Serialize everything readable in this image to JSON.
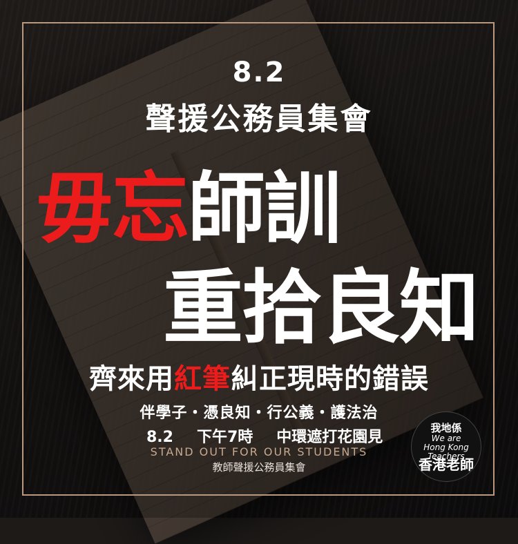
{
  "poster": {
    "date_top": "8.2",
    "subtitle": "聲援公務員集會",
    "headline1_red": "毋忘",
    "headline1_white": "師訓",
    "headline2": "重拾良知",
    "line3_pre": "齊來用",
    "line3_red": "紅筆",
    "line3_post": "糾正現時的錯誤",
    "line4": "伴學子・憑良知・行公義・護法治",
    "line5_date": "8.2",
    "line5_time": "下午7時",
    "line5_place": "中環遮打花園見",
    "stand_out": "STAND OUT FOR OUR STUDENTS",
    "organizer": "教師聲援公務員集會"
  },
  "logo": {
    "line1": "我地係",
    "line2a": "We are",
    "line2b": "Hong Kong",
    "line2c": "Teachers",
    "line3": "香港老師"
  },
  "colors": {
    "accent_red": "#ec1c1c",
    "frame": "#b99a80",
    "text": "#ffffff"
  }
}
